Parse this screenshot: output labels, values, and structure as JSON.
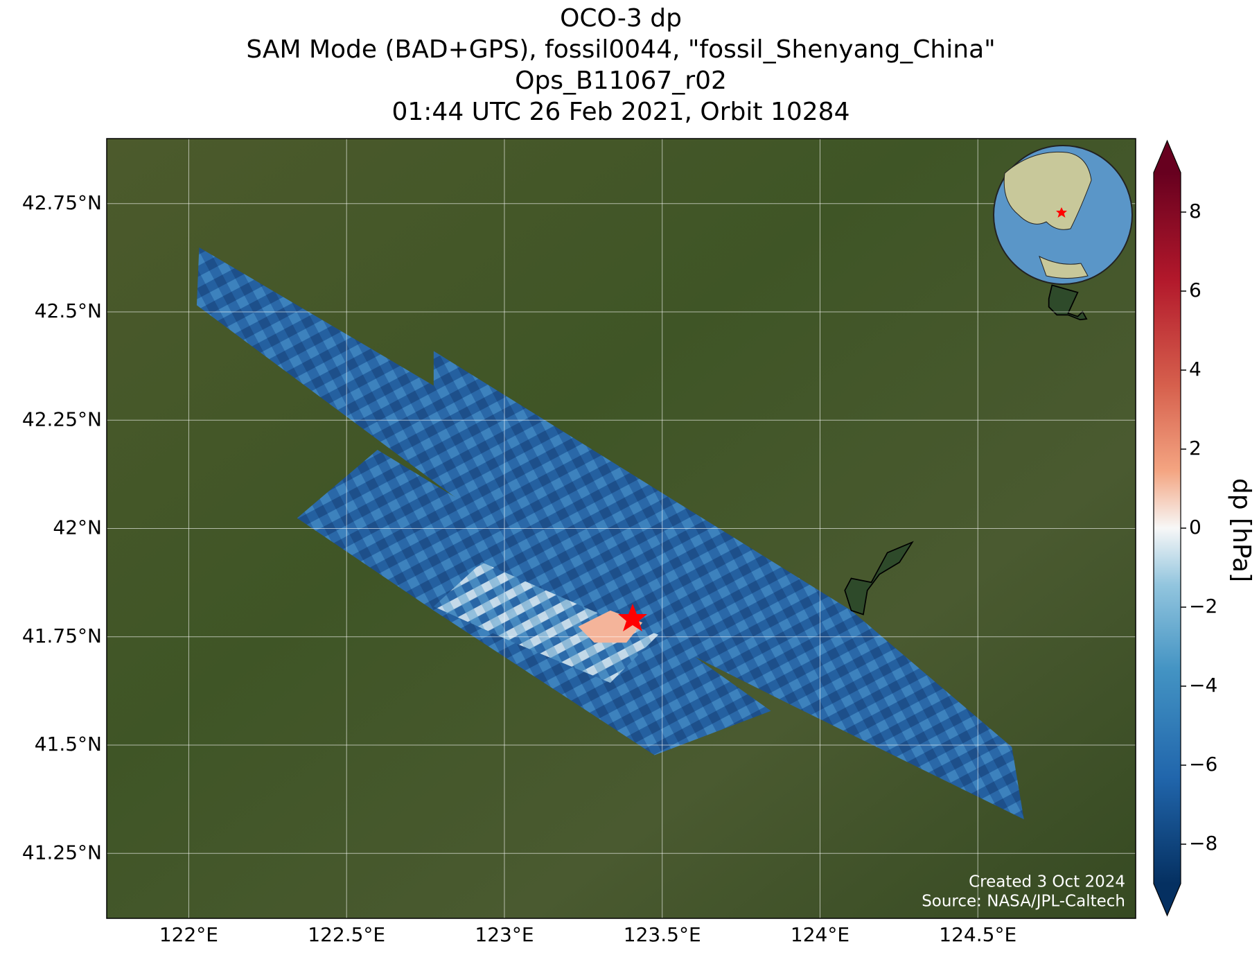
{
  "chart_data": {
    "type": "map",
    "title": [
      "OCO-3 dp",
      "SAM Mode (BAD+GPS), fossil0044, \"fossil_Shenyang_China\"",
      "Ops_B11067_r02",
      "01:44 UTC 26 Feb 2021, Orbit 10284"
    ],
    "xlim": [
      121.74,
      125.0
    ],
    "ylim": [
      41.1,
      42.9
    ],
    "xticks": [
      {
        "value": 122,
        "label": "122°E"
      },
      {
        "value": 122.5,
        "label": "122.5°E"
      },
      {
        "value": 123,
        "label": "123°E"
      },
      {
        "value": 123.5,
        "label": "123.5°E"
      },
      {
        "value": 124,
        "label": "124°E"
      },
      {
        "value": 124.5,
        "label": "124.5°E"
      }
    ],
    "yticks": [
      {
        "value": 41.25,
        "label": "41.25°N"
      },
      {
        "value": 41.5,
        "label": "41.5°N"
      },
      {
        "value": 41.75,
        "label": "41.75°N"
      },
      {
        "value": 42,
        "label": "42°N"
      },
      {
        "value": 42.25,
        "label": "42.25°N"
      },
      {
        "value": 42.5,
        "label": "42.5°N"
      },
      {
        "value": 42.75,
        "label": "42.75°N"
      }
    ],
    "grid": true,
    "colorbar": {
      "label": "dp [hPa]",
      "lim": [
        -9,
        9
      ],
      "ticks": [
        {
          "value": -8,
          "label": "−8"
        },
        {
          "value": -6,
          "label": "−6"
        },
        {
          "value": -4,
          "label": "−4"
        },
        {
          "value": -2,
          "label": "−2"
        },
        0,
        2,
        4,
        6,
        8
      ]
    },
    "annotations": [
      "Created 3 Oct 2024",
      "Source: NASA/JPL-Caltech"
    ]
  }
}
